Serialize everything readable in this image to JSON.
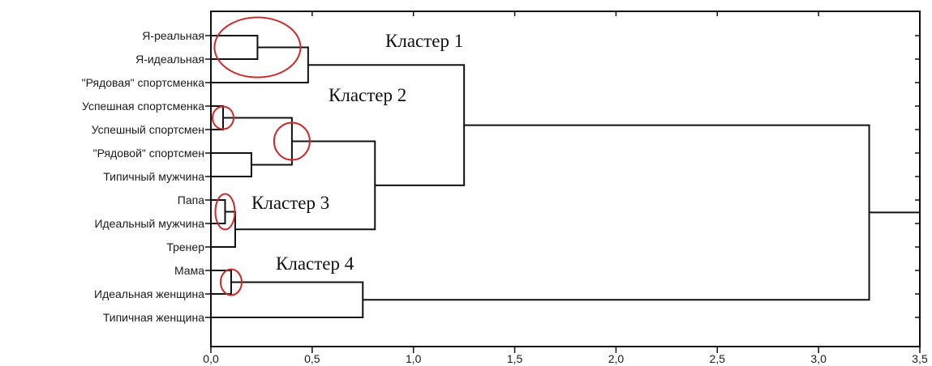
{
  "chart_data": {
    "type": "dendrogram",
    "orientation": "horizontal",
    "leaves": [
      "Я-реальная",
      "Я-идеальная",
      "\"Рядовая\" спортсменка",
      "Успешная спортсменка",
      "Успешный спортсмен",
      "\"Рядовой\" спортсмен",
      "Типичный мужчина",
      "Папа",
      "Идеальный мужчина",
      "Тренер",
      "Мама",
      "Идеальная женщина",
      "Типичная женщина"
    ],
    "merges": [
      {
        "id": "m1",
        "children": [
          "Я-реальная",
          "Я-идеальная"
        ],
        "height": 0.23
      },
      {
        "id": "m2",
        "children": [
          "m1",
          "\"Рядовая\" спортсменка"
        ],
        "height": 0.48
      },
      {
        "id": "m3",
        "children": [
          "Успешная спортсменка",
          "Успешный спортсмен"
        ],
        "height": 0.06
      },
      {
        "id": "m4",
        "children": [
          "\"Рядовой\" спортсмен",
          "Типичный мужчина"
        ],
        "height": 0.2
      },
      {
        "id": "m5",
        "children": [
          "m3",
          "m4"
        ],
        "height": 0.4
      },
      {
        "id": "m6",
        "children": [
          "Папа",
          "Идеальный мужчина"
        ],
        "height": 0.07
      },
      {
        "id": "m7",
        "children": [
          "m6",
          "Тренер"
        ],
        "height": 0.12
      },
      {
        "id": "m8",
        "children": [
          "m5",
          "m7"
        ],
        "height": 0.81
      },
      {
        "id": "m9",
        "children": [
          "m2",
          "m8"
        ],
        "height": 1.25
      },
      {
        "id": "m10",
        "children": [
          "Мама",
          "Идеальная женщина"
        ],
        "height": 0.1
      },
      {
        "id": "m11",
        "children": [
          "m10",
          "Типичная женщина"
        ],
        "height": 0.75
      },
      {
        "id": "m12",
        "children": [
          "m9",
          "m11"
        ],
        "height": 3.25
      }
    ],
    "xlim": [
      0,
      3.5
    ],
    "xticks": [
      "0,0",
      "0,5",
      "1,0",
      "1,5",
      "2,0",
      "2,5",
      "3,0",
      "3,5"
    ],
    "xtick_values": [
      0,
      0.5,
      1.0,
      1.5,
      2.0,
      2.5,
      3.0,
      3.5
    ],
    "grid": false,
    "line_color": "#111111",
    "annotations": {
      "clusters": [
        "Кластер 1",
        "Кластер 2",
        "Кластер 3",
        "Кластер 4"
      ],
      "circle_color": "#cc2a2a",
      "circled_merges": [
        "m1",
        "m3",
        "m5",
        "m6",
        "m10"
      ]
    }
  }
}
